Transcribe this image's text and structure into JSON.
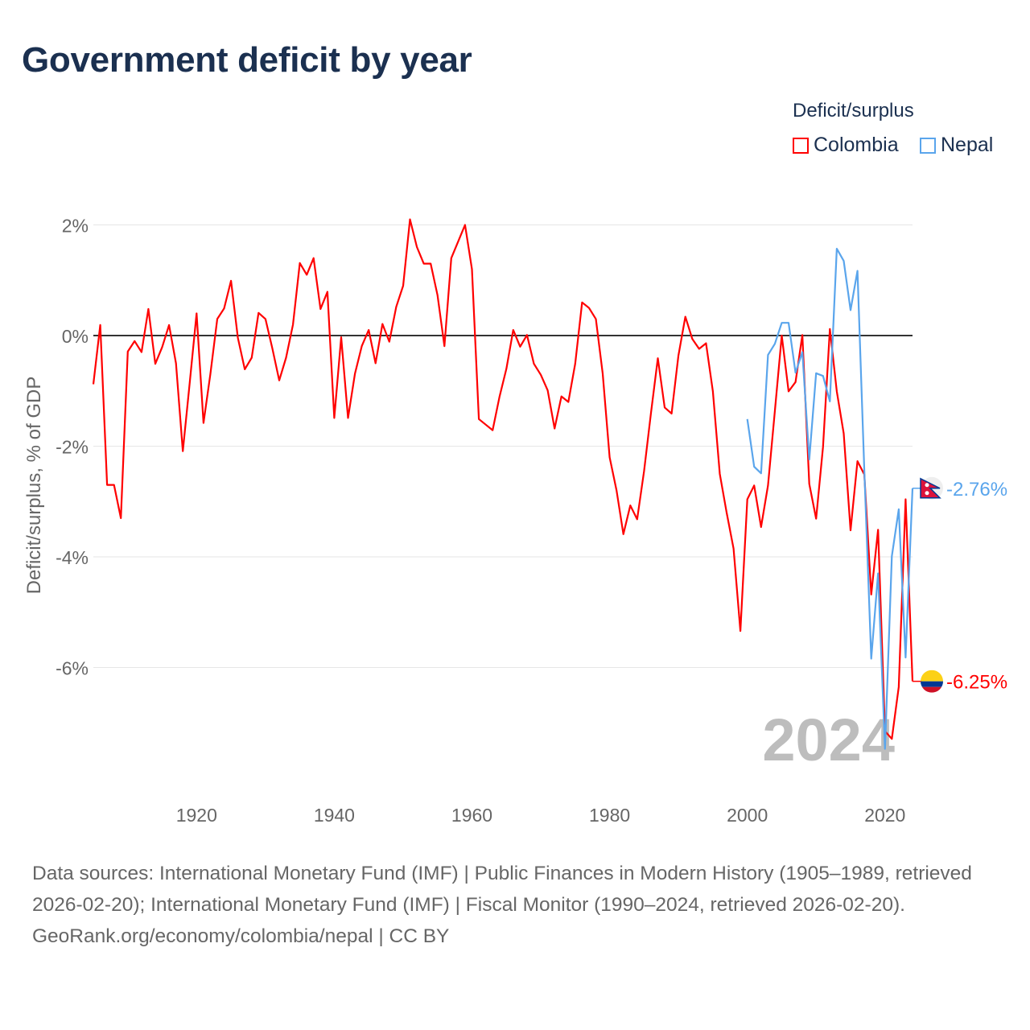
{
  "title": "Government deficit by year",
  "legend": {
    "title": "Deficit/surplus",
    "items": [
      {
        "name": "Colombia",
        "color": "#ff0000"
      },
      {
        "name": "Nepal",
        "color": "#5aa5ec"
      }
    ]
  },
  "chart_data": {
    "type": "line",
    "title": "Government deficit by year",
    "xlabel": "",
    "ylabel": "Deficit/surplus, % of GDP",
    "xlim": [
      1905,
      2024
    ],
    "ylim": [
      -7.5,
      2.2
    ],
    "x_ticks": [
      1920,
      1940,
      1960,
      1980,
      2000,
      2020
    ],
    "y_ticks": [
      {
        "value": 2,
        "label": "2%"
      },
      {
        "value": 0,
        "label": "0%"
      },
      {
        "value": -2,
        "label": "-2%"
      },
      {
        "value": -4,
        "label": "-4%"
      },
      {
        "value": -6,
        "label": "-6%"
      }
    ],
    "grid": true,
    "legend_position": "top-right",
    "year_watermark": "2024",
    "series": [
      {
        "name": "Colombia",
        "color": "#ff0000",
        "start_year": 1905,
        "end_label": "-6.25%",
        "values": [
          -0.88,
          0.19,
          -2.7,
          -2.7,
          -3.3,
          -0.29,
          -0.1,
          -0.3,
          0.48,
          -0.51,
          -0.21,
          0.19,
          -0.5,
          -2.09,
          -0.85,
          0.4,
          -1.58,
          -0.7,
          0.3,
          0.49,
          0.99,
          -0.04,
          -0.61,
          -0.4,
          0.41,
          0.3,
          -0.23,
          -0.81,
          -0.4,
          0.2,
          1.31,
          1.1,
          1.4,
          0.48,
          0.79,
          -1.49,
          -0.03,
          -1.49,
          -0.69,
          -0.19,
          0.1,
          -0.5,
          0.21,
          -0.11,
          0.52,
          0.9,
          2.1,
          1.6,
          1.3,
          1.3,
          0.73,
          -0.19,
          1.4,
          1.7,
          2.0,
          1.2,
          -1.51,
          -1.61,
          -1.71,
          -1.11,
          -0.6,
          0.1,
          -0.2,
          0.01,
          -0.51,
          -0.71,
          -0.99,
          -1.68,
          -1.1,
          -1.2,
          -0.51,
          0.6,
          0.5,
          0.3,
          -0.69,
          -2.2,
          -2.8,
          -3.59,
          -3.07,
          -3.32,
          -2.45,
          -1.41,
          -0.41,
          -1.3,
          -1.41,
          -0.36,
          0.34,
          -0.06,
          -0.24,
          -0.14,
          -1.01,
          -2.5,
          -3.2,
          -3.85,
          -5.34,
          -2.96,
          -2.71,
          -3.46,
          -2.71,
          -1.37,
          0.0,
          -1.01,
          -0.84,
          0.01,
          -2.68,
          -3.31,
          -2.01,
          0.12,
          -1.01,
          -1.77,
          -3.52,
          -2.27,
          -2.51,
          -4.68,
          -3.51,
          -7.15,
          -7.29,
          -6.35,
          -2.96,
          -6.25
        ]
      },
      {
        "name": "Nepal",
        "color": "#5aa5ec",
        "start_year": 2000,
        "end_label": "-2.76%",
        "values": [
          -1.51,
          -2.37,
          -2.49,
          -0.35,
          -0.15,
          0.23,
          0.23,
          -0.67,
          -0.3,
          -2.24,
          -0.68,
          -0.73,
          -1.19,
          1.57,
          1.35,
          0.46,
          1.17,
          -2.44,
          -5.84,
          -4.3,
          -7.47,
          -3.99,
          -3.14,
          -5.82,
          -2.76
        ]
      }
    ]
  },
  "footer": {
    "sources": "Data sources: International Monetary Fund (IMF) | Public Finances in Modern History (1905–1989, retrieved 2026-02-20); International Monetary Fund (IMF) | Fiscal Monitor (1990–2024, retrieved 2026-02-20).",
    "credit": "GeoRank.org/economy/colombia/nepal | CC BY"
  }
}
